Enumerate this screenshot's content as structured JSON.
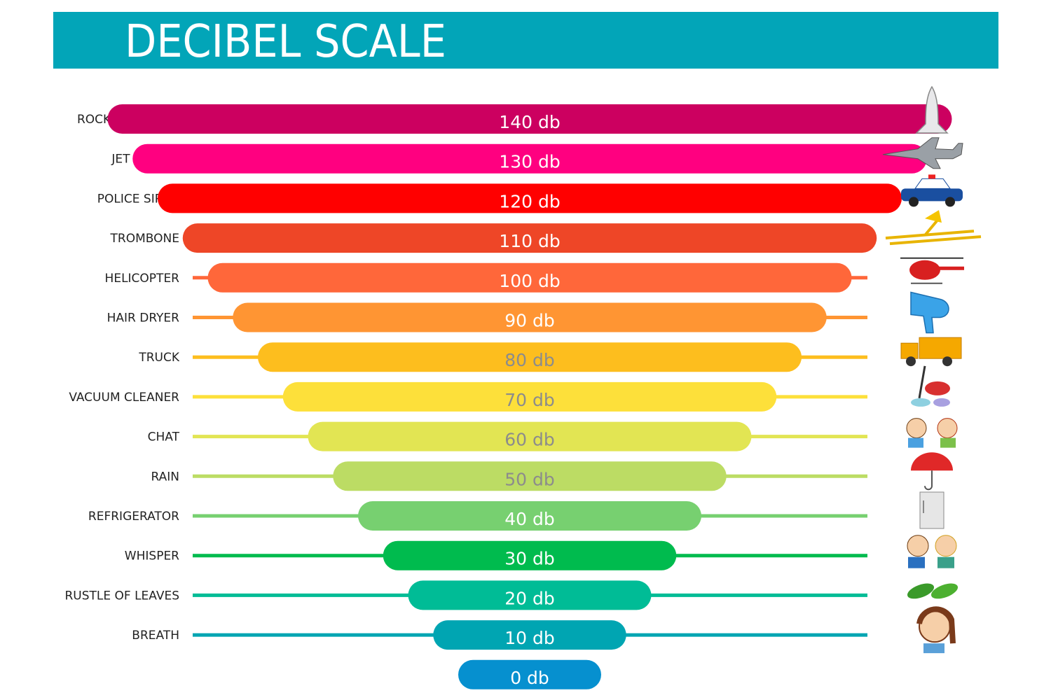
{
  "title": "DECIBEL SCALE",
  "chart_data": {
    "type": "bar",
    "title": "DECIBEL SCALE",
    "unit": "db",
    "items": [
      {
        "source": "ROCKET LAUNCH",
        "value": 140,
        "label": "140 db",
        "color": "#cc0060",
        "text_color": "#ffffff",
        "icon": "space-shuttle-icon"
      },
      {
        "source": "JET ENGINE",
        "value": 130,
        "label": "130 db",
        "color": "#ff0080",
        "text_color": "#ffffff",
        "icon": "fighter-jet-icon"
      },
      {
        "source": "POLICE SIREN",
        "value": 120,
        "label": "120 db",
        "color": "#ff0000",
        "text_color": "#ffffff",
        "icon": "police-car-icon"
      },
      {
        "source": "TROMBONE",
        "value": 110,
        "label": "110 db",
        "color": "#ee4627",
        "text_color": "#ffffff",
        "icon": "trombone-icon"
      },
      {
        "source": "HELICOPTER",
        "value": 100,
        "label": "100 db",
        "color": "#ff673a",
        "text_color": "#ffffff",
        "icon": "helicopter-icon"
      },
      {
        "source": "HAIR DRYER",
        "value": 90,
        "label": "90 db",
        "color": "#ff9533",
        "text_color": "#ffffff",
        "icon": "hair-dryer-icon"
      },
      {
        "source": "TRUCK",
        "value": 80,
        "label": "80 db",
        "color": "#fdbe1e",
        "text_color": "#8c8c8c",
        "icon": "dump-truck-icon"
      },
      {
        "source": "VACUUM CLEANER",
        "value": 70,
        "label": "70 db",
        "color": "#fde03a",
        "text_color": "#8c8c8c",
        "icon": "vacuum-cleaner-icon"
      },
      {
        "source": "CHAT",
        "value": 60,
        "label": "60 db",
        "color": "#e2e553",
        "text_color": "#8c8c8c",
        "icon": "chatting-kids-icon"
      },
      {
        "source": "RAIN",
        "value": 50,
        "label": "50 db",
        "color": "#bcdc64",
        "text_color": "#8c8c8c",
        "icon": "umbrella-rain-icon"
      },
      {
        "source": "REFRIGERATOR",
        "value": 40,
        "label": "40 db",
        "color": "#77d070",
        "text_color": "#ffffff",
        "icon": "refrigerator-icon"
      },
      {
        "source": "WHISPER",
        "value": 30,
        "label": "30 db",
        "color": "#00bb4e",
        "text_color": "#ffffff",
        "icon": "whispering-kids-icon"
      },
      {
        "source": "RUSTLE OF LEAVES",
        "value": 20,
        "label": "20 db",
        "color": "#00bc96",
        "text_color": "#ffffff",
        "icon": "leaves-icon"
      },
      {
        "source": "BREATH",
        "value": 10,
        "label": "10 db",
        "color": "#00a5b2",
        "text_color": "#ffffff",
        "icon": "breathing-girl-icon"
      },
      {
        "source": "",
        "value": 0,
        "label": "0 db",
        "color": "#0690cf",
        "text_color": "#ffffff",
        "icon": ""
      }
    ]
  }
}
